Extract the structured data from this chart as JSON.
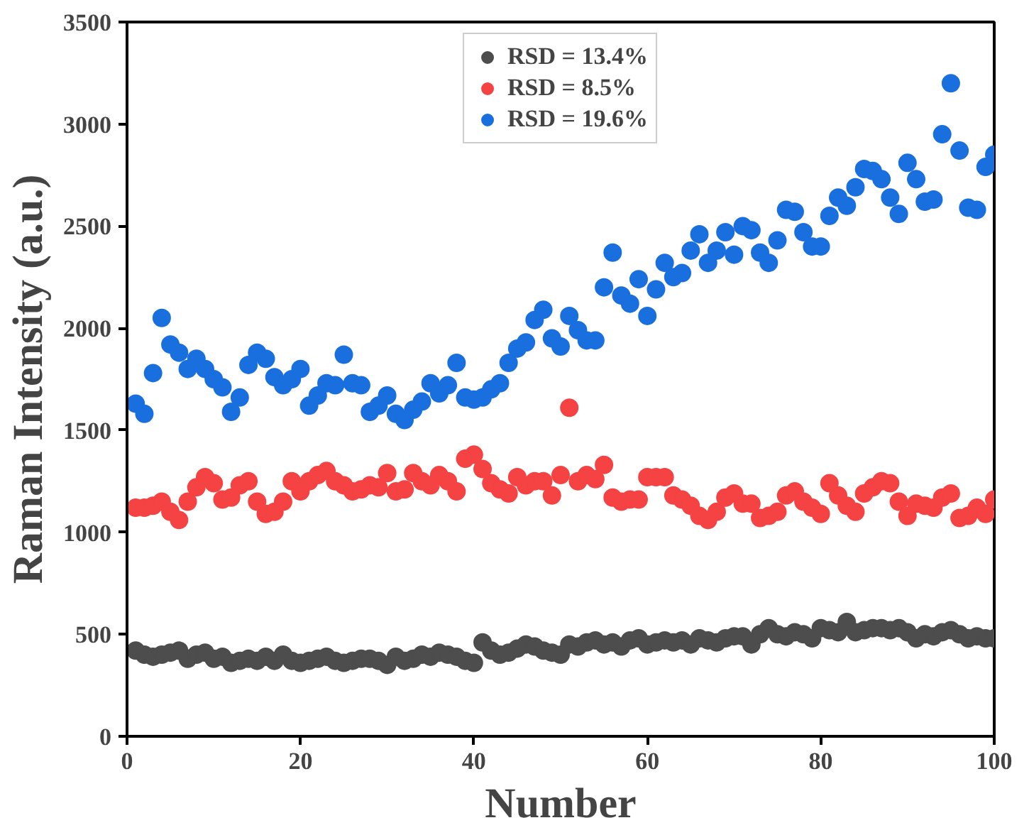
{
  "chart_data": {
    "type": "scatter",
    "xlabel": "Number",
    "ylabel": "Raman Intensity (a.u.)",
    "x": [
      1,
      2,
      3,
      4,
      5,
      6,
      7,
      8,
      9,
      10,
      11,
      12,
      13,
      14,
      15,
      16,
      17,
      18,
      19,
      20,
      21,
      22,
      23,
      24,
      25,
      26,
      27,
      28,
      29,
      30,
      31,
      32,
      33,
      34,
      35,
      36,
      37,
      38,
      39,
      40,
      41,
      42,
      43,
      44,
      45,
      46,
      47,
      48,
      49,
      50,
      51,
      52,
      53,
      54,
      55,
      56,
      57,
      58,
      59,
      60,
      61,
      62,
      63,
      64,
      65,
      66,
      67,
      68,
      69,
      70,
      71,
      72,
      73,
      74,
      75,
      76,
      77,
      78,
      79,
      80,
      81,
      82,
      83,
      84,
      85,
      86,
      87,
      88,
      89,
      90,
      91,
      92,
      93,
      94,
      95,
      96,
      97,
      98,
      99,
      100
    ],
    "xlim": [
      0,
      100
    ],
    "ylim": [
      0,
      3500
    ],
    "xticks": [
      0,
      20,
      40,
      60,
      80,
      100
    ],
    "yticks": [
      0,
      500,
      1000,
      1500,
      2000,
      2500,
      3000,
      3500
    ],
    "grid": false,
    "legend": "top",
    "marker": "circle",
    "series": [
      {
        "name": "RSD = 13.4%",
        "color": "#4d4d4d",
        "values": [
          420,
          400,
          390,
          400,
          410,
          420,
          380,
          400,
          410,
          380,
          390,
          360,
          370,
          380,
          370,
          390,
          370,
          400,
          370,
          360,
          370,
          380,
          390,
          370,
          360,
          370,
          380,
          380,
          370,
          350,
          390,
          370,
          380,
          400,
          390,
          410,
          400,
          390,
          370,
          360,
          460,
          420,
          400,
          410,
          430,
          450,
          440,
          420,
          410,
          400,
          450,
          440,
          460,
          470,
          450,
          460,
          440,
          470,
          480,
          450,
          460,
          470,
          460,
          470,
          450,
          480,
          470,
          460,
          480,
          490,
          490,
          450,
          500,
          530,
          500,
          490,
          510,
          500,
          480,
          530,
          520,
          510,
          560,
          510,
          520,
          530,
          530,
          520,
          530,
          510,
          480,
          500,
          490,
          510,
          520,
          500,
          480,
          490,
          480,
          480
        ]
      },
      {
        "name": "RSD = 8.5%",
        "color": "#f54242",
        "values": [
          1120,
          1120,
          1130,
          1150,
          1100,
          1060,
          1150,
          1220,
          1270,
          1240,
          1160,
          1170,
          1230,
          1250,
          1150,
          1090,
          1100,
          1150,
          1250,
          1200,
          1250,
          1280,
          1300,
          1250,
          1230,
          1200,
          1210,
          1230,
          1220,
          1290,
          1200,
          1210,
          1290,
          1250,
          1230,
          1280,
          1250,
          1200,
          1360,
          1380,
          1310,
          1240,
          1210,
          1190,
          1270,
          1230,
          1250,
          1250,
          1180,
          1280,
          1610,
          1250,
          1280,
          1260,
          1330,
          1170,
          1150,
          1160,
          1160,
          1270,
          1270,
          1270,
          1180,
          1160,
          1130,
          1080,
          1060,
          1100,
          1170,
          1190,
          1140,
          1140,
          1070,
          1080,
          1100,
          1180,
          1200,
          1150,
          1120,
          1090,
          1240,
          1180,
          1130,
          1100,
          1190,
          1220,
          1250,
          1240,
          1150,
          1080,
          1140,
          1130,
          1120,
          1170,
          1190,
          1070,
          1080,
          1120,
          1090,
          1160
        ]
      },
      {
        "name": "RSD = 19.6%",
        "color": "#1a6fdf",
        "values": [
          1630,
          1580,
          1780,
          2050,
          1920,
          1880,
          1800,
          1850,
          1800,
          1750,
          1710,
          1590,
          1660,
          1820,
          1880,
          1850,
          1760,
          1720,
          1750,
          1800,
          1620,
          1670,
          1730,
          1720,
          1870,
          1730,
          1720,
          1590,
          1620,
          1670,
          1580,
          1550,
          1600,
          1640,
          1730,
          1680,
          1720,
          1830,
          1660,
          1650,
          1660,
          1700,
          1730,
          1830,
          1900,
          1930,
          2040,
          2090,
          1950,
          1910,
          2060,
          1990,
          1940,
          1940,
          2200,
          2370,
          2160,
          2120,
          2240,
          2060,
          2190,
          2320,
          2250,
          2270,
          2380,
          2460,
          2320,
          2380,
          2470,
          2360,
          2500,
          2480,
          2370,
          2320,
          2430,
          2580,
          2570,
          2470,
          2400,
          2400,
          2550,
          2640,
          2600,
          2690,
          2780,
          2770,
          2730,
          2640,
          2560,
          2810,
          2730,
          2620,
          2630,
          2950,
          3200,
          2870,
          2590,
          2580,
          2790,
          2850
        ]
      }
    ]
  }
}
